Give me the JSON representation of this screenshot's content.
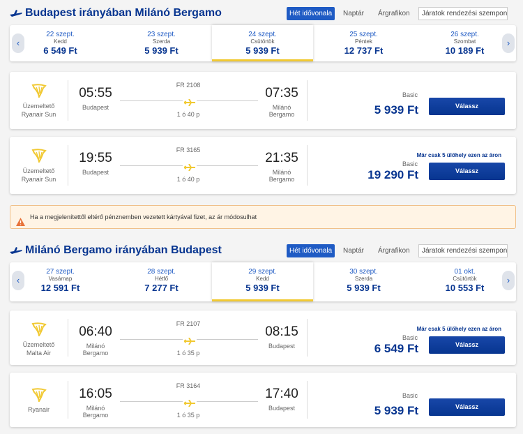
{
  "sections": [
    {
      "title": "Budapest irányában Milánó Bergamo",
      "tabs": [
        "Hét idővonala",
        "Naptár",
        "Árgrafikon"
      ],
      "sort_label": "Járatok rendezési szempontja:",
      "selected_date": 2,
      "dates": [
        {
          "date": "22 szept.",
          "weekday": "Kedd",
          "price": "6 549 Ft"
        },
        {
          "date": "23 szept.",
          "weekday": "Szerda",
          "price": "5 939 Ft"
        },
        {
          "date": "24 szept.",
          "weekday": "Csütörtök",
          "price": "5 939 Ft"
        },
        {
          "date": "25 szept.",
          "weekday": "Péntek",
          "price": "12 737 Ft"
        },
        {
          "date": "26 szept.",
          "weekday": "Szombat",
          "price": "10 189 Ft"
        }
      ],
      "flights": [
        {
          "operator_label": "Üzemeltető",
          "operator": "Ryanair Sun",
          "dep_time": "05:55",
          "dep_city": "Budapest",
          "flight_no": "FR 2108",
          "duration": "1 ó 40 p",
          "arr_time": "07:35",
          "arr_city": "Milánó Bergamo",
          "fare": "Basic",
          "price": "5 939 Ft",
          "button": "Válassz"
        },
        {
          "operator_label": "Üzemeltető",
          "operator": "Ryanair Sun",
          "dep_time": "19:55",
          "dep_city": "Budapest",
          "flight_no": "FR 3165",
          "duration": "1 ó 40 p",
          "arr_time": "21:35",
          "arr_city": "Milánó Bergamo",
          "notice": "Már csak 5 ülőhely ezen az áron",
          "fare": "Basic",
          "price": "19 290 Ft",
          "button": "Válassz"
        }
      ]
    },
    {
      "title": "Milánó Bergamo irányában Budapest",
      "tabs": [
        "Hét idővonala",
        "Naptár",
        "Árgrafikon"
      ],
      "sort_label": "Járatok rendezési szempontja:",
      "selected_date": 2,
      "dates": [
        {
          "date": "27 szept.",
          "weekday": "Vasárnap",
          "price": "12 591 Ft"
        },
        {
          "date": "28 szept.",
          "weekday": "Hétfő",
          "price": "7 277 Ft"
        },
        {
          "date": "29 szept.",
          "weekday": "Kedd",
          "price": "5 939 Ft"
        },
        {
          "date": "30 szept.",
          "weekday": "Szerda",
          "price": "5 939 Ft"
        },
        {
          "date": "01 okt.",
          "weekday": "Csütörtök",
          "price": "10 553 Ft"
        }
      ],
      "flights": [
        {
          "operator_label": "Üzemeltető",
          "operator": "Malta Air",
          "dep_time": "06:40",
          "dep_city": "Milánó Bergamo",
          "flight_no": "FR 2107",
          "duration": "1 ó 35 p",
          "arr_time": "08:15",
          "arr_city": "Budapest",
          "notice": "Már csak 5 ülőhely ezen az áron",
          "fare": "Basic",
          "price": "6 549 Ft",
          "button": "Válassz"
        },
        {
          "operator": "Ryanair",
          "dep_time": "16:05",
          "dep_city": "Milánó Bergamo",
          "flight_no": "FR 3164",
          "duration": "1 ó 35 p",
          "arr_time": "17:40",
          "arr_city": "Budapest",
          "fare": "Basic",
          "price": "5 939 Ft",
          "button": "Válassz"
        }
      ]
    }
  ],
  "currency_notice": "Ha a megjelenítettől eltérő pénznemben vezetett kártyával fizet, az ár módosulhat"
}
